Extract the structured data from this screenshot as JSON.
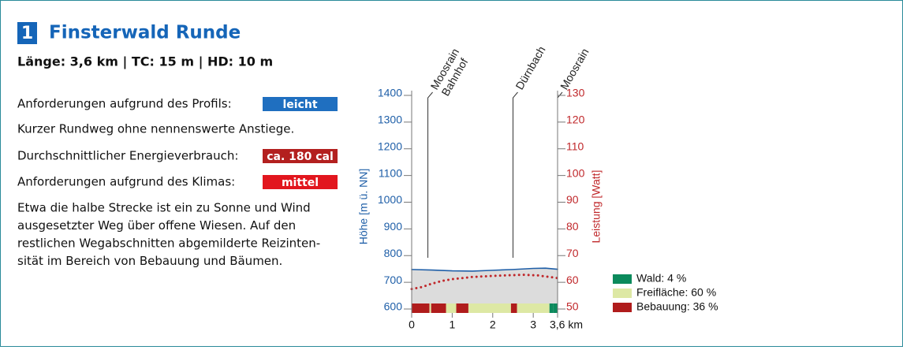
{
  "header": {
    "number": "1",
    "title": "Finsterwald Runde",
    "subtitle": "Länge: 3,6 km | TC: 15 m | HD: 10 m"
  },
  "info": {
    "rows": [
      {
        "label": "Anforderungen aufgrund des Profils:",
        "badge": "leicht",
        "badge_color": "#1f6fc0"
      },
      {
        "label": "Kurzer Rundweg ohne nennenswerte Anstiege."
      },
      {
        "label": "Durchschnittlicher Energieverbrauch:",
        "badge": "ca. 180 cal",
        "badge_color": "#b3201f"
      },
      {
        "label": "Anforderungen aufgrund des Klimas:",
        "badge": "mittel",
        "badge_color": "#e2161e"
      }
    ],
    "paragraph": [
      "Etwa die halbe Strecke ist ein zu Sonne und Wind",
      "ausgesetzter Weg über offene Wiesen. Auf den",
      "restlichen Wegabschnitten abgemilderte Reizinten-",
      "sität im Bereich von Bebauung und Bäumen."
    ]
  },
  "chart_data": {
    "type": "line",
    "ylabel": "Höhe [m ü. NN]",
    "y2label": "Leistung [Watt]",
    "xlim": [
      0,
      3.6
    ],
    "xticks": [
      0,
      1,
      2,
      3,
      {
        "value": 3.6,
        "label": "3,6 km"
      }
    ],
    "ylim": [
      600,
      1400
    ],
    "yticks": [
      600,
      700,
      800,
      900,
      1000,
      1100,
      1200,
      1300,
      1400
    ],
    "y2lim": [
      50,
      130
    ],
    "y2ticks": [
      50,
      60,
      70,
      80,
      90,
      100,
      110,
      120,
      130
    ],
    "series": [
      {
        "color": "#1f5fa8",
        "fill": "#dcdcdc",
        "x": [
          0,
          0.5,
          1,
          1.5,
          2,
          2.5,
          3,
          3.3,
          3.6
        ],
        "values": [
          748,
          746,
          743,
          742,
          745,
          748,
          752,
          753,
          749
        ]
      },
      {
        "color": "#c0282b",
        "style": "dotted",
        "axis": "y2",
        "x": [
          0,
          0.25,
          0.5,
          0.75,
          1,
          1.5,
          2,
          2.5,
          2.8,
          3.1,
          3.6
        ],
        "values": [
          57.5,
          58.2,
          59.5,
          60.5,
          61.2,
          62.0,
          62.4,
          62.7,
          62.8,
          62.6,
          61.6
        ]
      }
    ],
    "places": [
      {
        "lines": [
          "Moosrain",
          "Bahnhof"
        ],
        "x": 0.4
      },
      {
        "lines": [
          "Dürnbach"
        ],
        "x": 2.5
      },
      {
        "lines": [
          "Moosrain"
        ],
        "x": 3.6
      }
    ],
    "landuse": {
      "legend": [
        {
          "label": "Wald: 4 %",
          "color": "#0b8a5c"
        },
        {
          "label": "Freifläche: 60 %",
          "color": "#dde8a4"
        },
        {
          "label": "Bebauung: 36 %",
          "color": "#b01c1c"
        }
      ],
      "segments": [
        {
          "from": 0,
          "to": 0.44,
          "kind": 2
        },
        {
          "from": 0.44,
          "to": 0.48,
          "kind": 1
        },
        {
          "from": 0.48,
          "to": 0.85,
          "kind": 2
        },
        {
          "from": 0.85,
          "to": 1.1,
          "kind": 1
        },
        {
          "from": 1.1,
          "to": 1.4,
          "kind": 2
        },
        {
          "from": 1.4,
          "to": 2.45,
          "kind": 1
        },
        {
          "from": 2.45,
          "to": 2.6,
          "kind": 2
        },
        {
          "from": 2.6,
          "to": 3.4,
          "kind": 1
        },
        {
          "from": 3.4,
          "to": 3.5,
          "kind": 0
        },
        {
          "from": 3.5,
          "to": 3.6,
          "kind": 0
        }
      ]
    }
  }
}
